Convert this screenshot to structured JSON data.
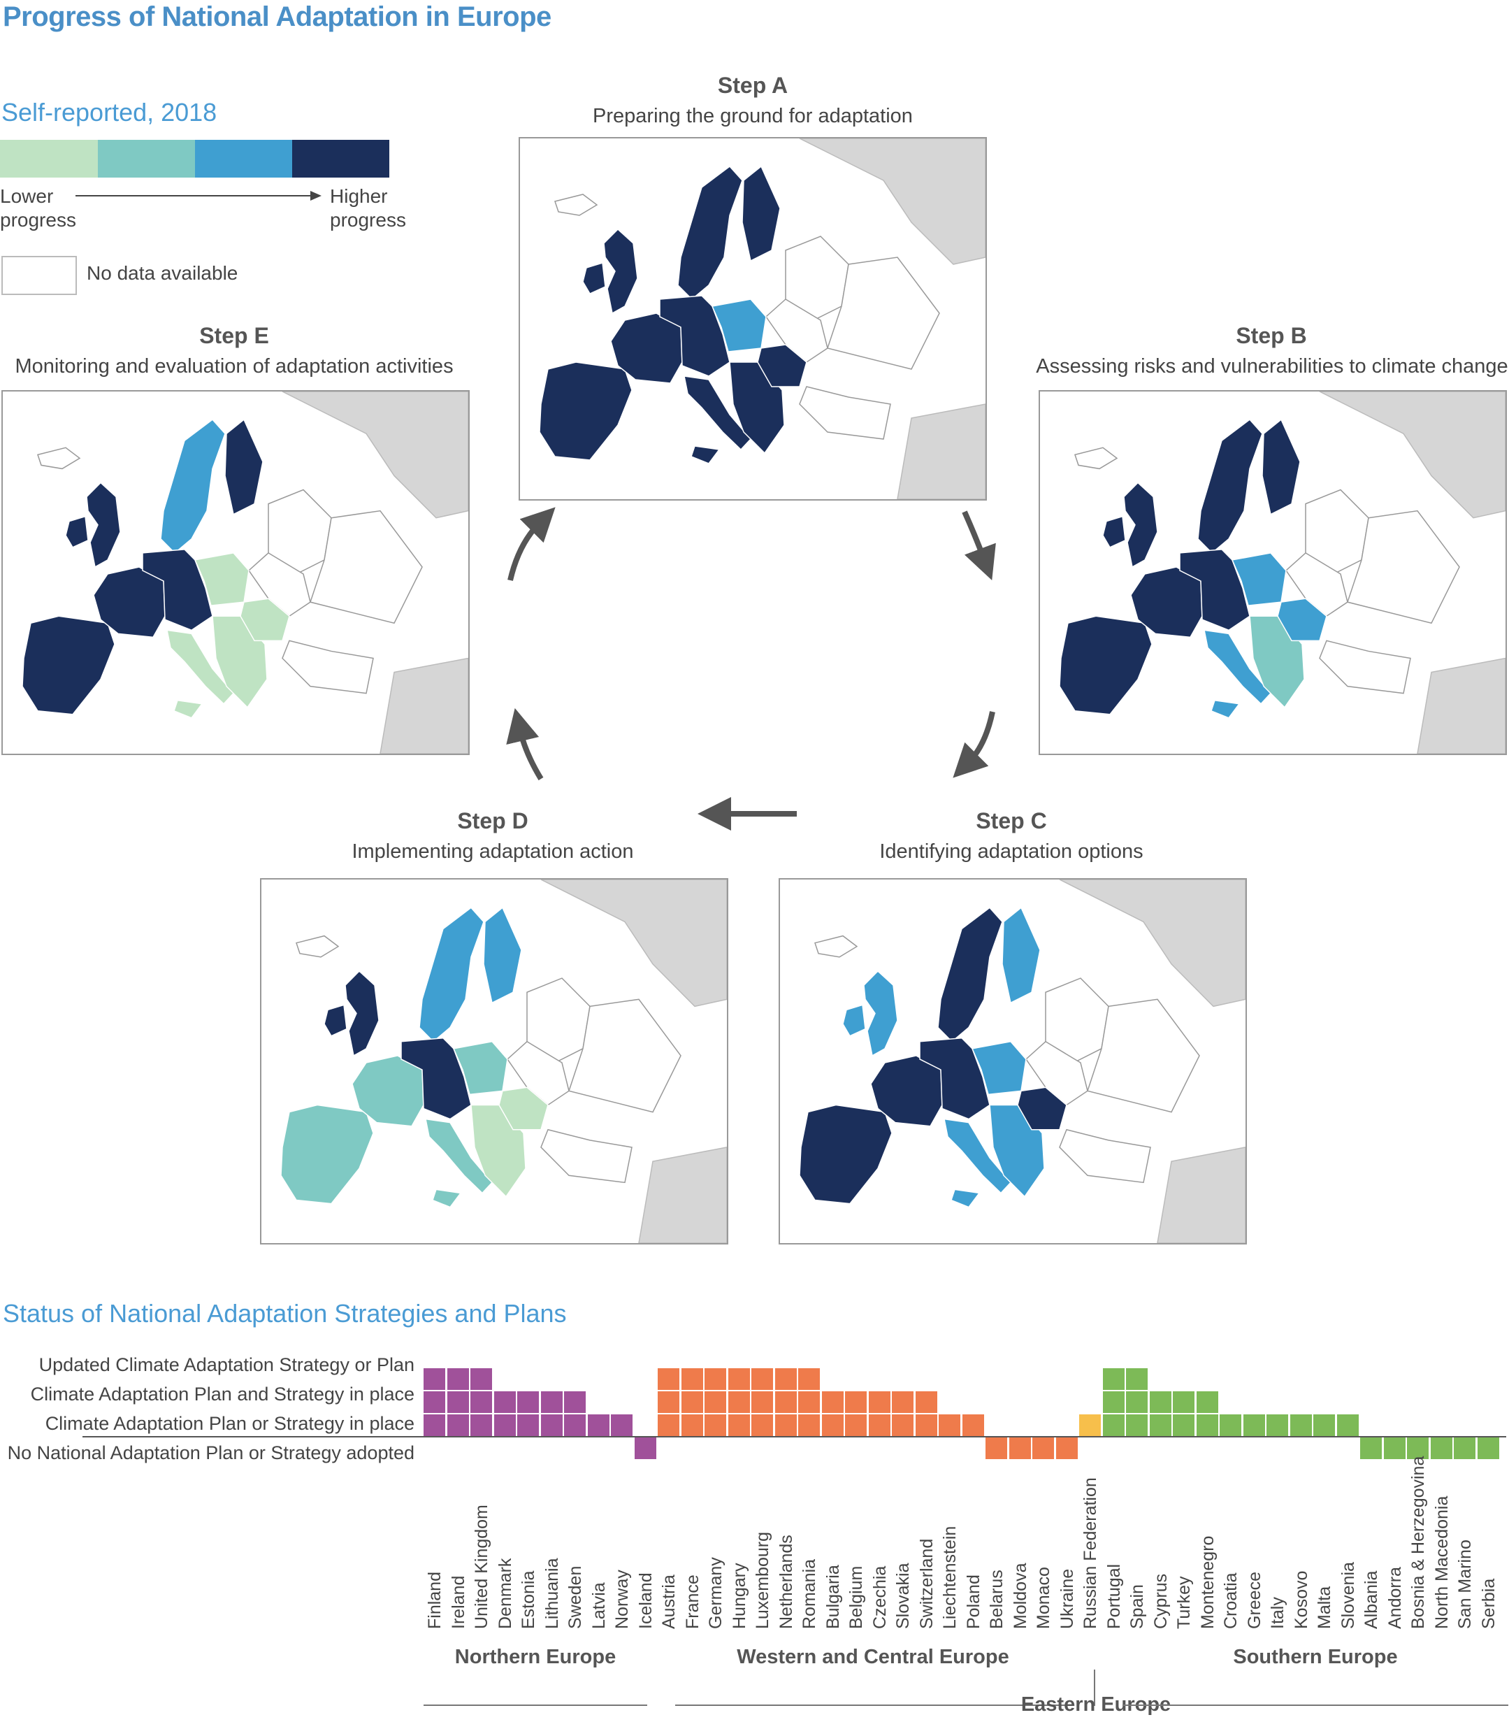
{
  "title": "Progress of National Adaptation in Europe",
  "legend": {
    "title": "Self-reported, 2018",
    "colors": [
      "#bfe3c3",
      "#7fc9c3",
      "#3f9fd1",
      "#1b2f5b"
    ],
    "lower": "Lower progress",
    "higher": "Higher progress",
    "no_data": "No data available"
  },
  "steps": [
    {
      "id": "A",
      "title": "Step A",
      "subtitle": "Preparing the ground for adaptation"
    },
    {
      "id": "B",
      "title": "Step B",
      "subtitle": "Assessing risks and vulnerabilities to climate change"
    },
    {
      "id": "C",
      "title": "Step C",
      "subtitle": "Identifying adaptation options"
    },
    {
      "id": "D",
      "title": "Step D",
      "subtitle": "Implementing adaptation action"
    },
    {
      "id": "E",
      "title": "Step E",
      "subtitle": "Monitoring and evaluation of adaptation activities"
    }
  ],
  "status": {
    "title": "Status of National Adaptation Strategies and Plans",
    "levels": [
      "Updated Climate Adaptation Strategy or Plan",
      "Climate Adaptation Plan and Strategy in place",
      "Climate Adaptation Plan or Strategy in place",
      "No National Adaptation Plan or Strategy adopted"
    ],
    "regions": [
      "Northern Europe",
      "Western and Central Europe",
      "Eastern Europe",
      "Southern Europe"
    ]
  },
  "chart_data": {
    "type": "table",
    "title": "Status of National Adaptation Strategies and Plans",
    "scale": {
      "-1": "No National Adaptation Plan or Strategy adopted",
      "1": "Climate Adaptation Plan or Strategy in place",
      "2": "Climate Adaptation Plan and Strategy in place",
      "3": "Updated Climate Adaptation Strategy or Plan"
    },
    "region_colors": {
      "Northern Europe": "#a0519a",
      "Western and Central Europe": "#ef7b4b",
      "Eastern Europe": "#ef7b4b",
      "Russian Federation": "#f7bf4b",
      "Southern Europe": "#7dba57"
    },
    "countries": [
      {
        "name": "Finland",
        "region": "Northern Europe",
        "value": 3
      },
      {
        "name": "Ireland",
        "region": "Northern Europe",
        "value": 3
      },
      {
        "name": "United Kingdom",
        "region": "Northern Europe",
        "value": 3
      },
      {
        "name": "Denmark",
        "region": "Northern Europe",
        "value": 2
      },
      {
        "name": "Estonia",
        "region": "Northern Europe",
        "value": 2
      },
      {
        "name": "Lithuania",
        "region": "Northern Europe",
        "value": 2
      },
      {
        "name": "Sweden",
        "region": "Northern Europe",
        "value": 2
      },
      {
        "name": "Latvia",
        "region": "Northern Europe",
        "value": 1
      },
      {
        "name": "Norway",
        "region": "Northern Europe",
        "value": 1
      },
      {
        "name": "Iceland",
        "region": "Northern Europe",
        "value": -1
      },
      {
        "name": "Austria",
        "region": "Western and Central Europe",
        "value": 3
      },
      {
        "name": "France",
        "region": "Western and Central Europe",
        "value": 3
      },
      {
        "name": "Germany",
        "region": "Western and Central Europe",
        "value": 3
      },
      {
        "name": "Hungary",
        "region": "Western and Central Europe",
        "value": 3
      },
      {
        "name": "Luxembourg",
        "region": "Western and Central Europe",
        "value": 3
      },
      {
        "name": "Netherlands",
        "region": "Western and Central Europe",
        "value": 3
      },
      {
        "name": "Romania",
        "region": "Western and Central Europe",
        "value": 3
      },
      {
        "name": "Bulgaria",
        "region": "Western and Central Europe",
        "value": 2
      },
      {
        "name": "Belgium",
        "region": "Western and Central Europe",
        "value": 2
      },
      {
        "name": "Czechia",
        "region": "Western and Central Europe",
        "value": 2
      },
      {
        "name": "Slovakia",
        "region": "Western and Central Europe",
        "value": 2
      },
      {
        "name": "Switzerland",
        "region": "Western and Central Europe",
        "value": 2
      },
      {
        "name": "Liechtenstein",
        "region": "Western and Central Europe",
        "value": 1
      },
      {
        "name": "Poland",
        "region": "Western and Central Europe",
        "value": 1
      },
      {
        "name": "Belarus",
        "region": "Eastern Europe",
        "value": -1
      },
      {
        "name": "Moldova",
        "region": "Eastern Europe",
        "value": -1
      },
      {
        "name": "Monaco",
        "region": "Eastern Europe",
        "value": -1
      },
      {
        "name": "Ukraine",
        "region": "Eastern Europe",
        "value": -1
      },
      {
        "name": "Russian Federation",
        "region": "Eastern Europe",
        "value": 1
      },
      {
        "name": "Portugal",
        "region": "Southern Europe",
        "value": 3
      },
      {
        "name": "Spain",
        "region": "Southern Europe",
        "value": 3
      },
      {
        "name": "Cyprus",
        "region": "Southern Europe",
        "value": 2
      },
      {
        "name": "Turkey",
        "region": "Southern Europe",
        "value": 2
      },
      {
        "name": "Montenegro",
        "region": "Southern Europe",
        "value": 2
      },
      {
        "name": "Croatia",
        "region": "Southern Europe",
        "value": 1
      },
      {
        "name": "Greece",
        "region": "Southern Europe",
        "value": 1
      },
      {
        "name": "Italy",
        "region": "Southern Europe",
        "value": 1
      },
      {
        "name": "Kosovo",
        "region": "Southern Europe",
        "value": 1
      },
      {
        "name": "Malta",
        "region": "Southern Europe",
        "value": 1
      },
      {
        "name": "Slovenia",
        "region": "Southern Europe",
        "value": 1
      },
      {
        "name": "Albania",
        "region": "Southern Europe",
        "value": -1
      },
      {
        "name": "Andorra",
        "region": "Southern Europe",
        "value": -1
      },
      {
        "name": "Bosnia & Herzegovina",
        "region": "Southern Europe",
        "value": -1
      },
      {
        "name": "North Macedonia",
        "region": "Southern Europe",
        "value": -1
      },
      {
        "name": "San Marino",
        "region": "Southern Europe",
        "value": -1
      },
      {
        "name": "Serbia",
        "region": "Southern Europe",
        "value": -1
      }
    ]
  },
  "maps": {
    "A": {
      "Scandinavia": 3,
      "Finland": 3,
      "British Isles": 3,
      "Iberia": 3,
      "France": 3,
      "Central": 3,
      "Poland": 2,
      "Italy": 3,
      "Balkans": 3,
      "Romania": 3
    },
    "B": {
      "Scandinavia": 3,
      "Finland": 3,
      "British Isles": 3,
      "Iberia": 3,
      "France": 3,
      "Central": 3,
      "Poland": 2,
      "Italy": 2,
      "Balkans": 1,
      "Romania": 2
    },
    "C": {
      "Scandinavia": 3,
      "Finland": 2,
      "British Isles": 2,
      "Iberia": 3,
      "France": 3,
      "Central": 3,
      "Poland": 2,
      "Italy": 2,
      "Balkans": 2,
      "Romania": 3
    },
    "D": {
      "Scandinavia": 2,
      "Finland": 2,
      "British Isles": 3,
      "Iberia": 1,
      "France": 1,
      "Central": 3,
      "Poland": 1,
      "Italy": 1,
      "Balkans": 0,
      "Romania": 0
    },
    "E": {
      "Scandinavia": 2,
      "Finland": 3,
      "British Isles": 3,
      "Iberia": 3,
      "France": 3,
      "Central": 3,
      "Poland": 0,
      "Italy": 0,
      "Balkans": 0,
      "Romania": 0
    }
  }
}
